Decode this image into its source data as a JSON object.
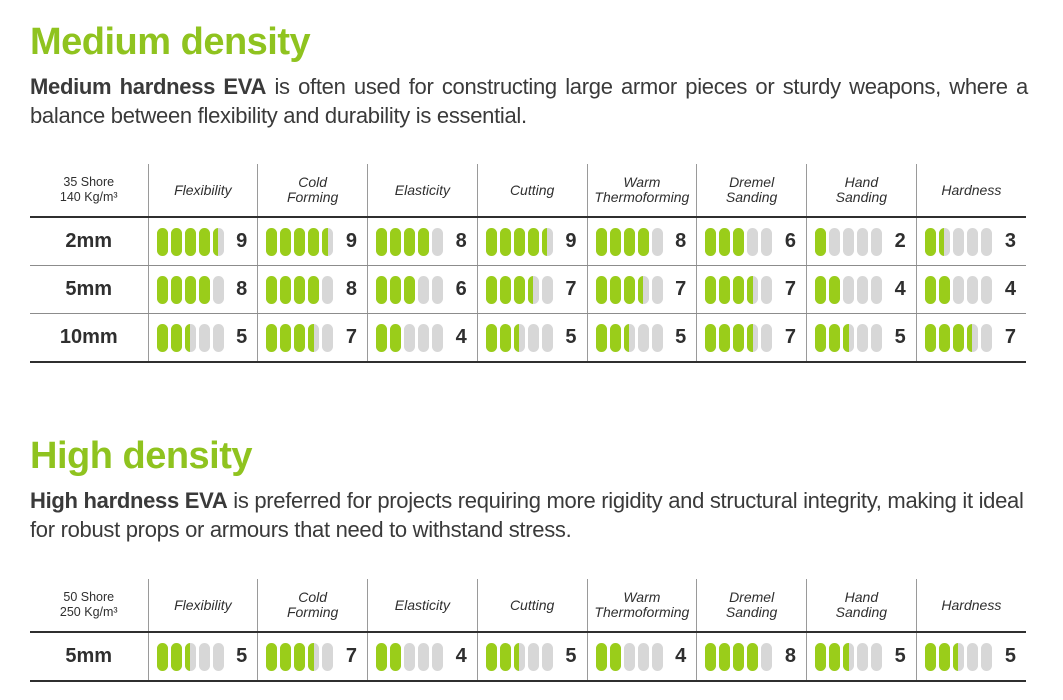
{
  "colors": {
    "accent": "#8fc31f",
    "bar_fill": "#9acd1a",
    "bar_empty": "#d7d7d7"
  },
  "medium": {
    "title": "Medium density",
    "desc_bold": "Medium hardness EVA",
    "desc_rest": " is often used for constructing large armor pieces or sturdy weapons, where a balance between flexibility and durability is essential.",
    "corner_line1": "35 Shore",
    "corner_line2": "140 Kg/m³",
    "headers": [
      "Flexibility",
      "Cold Forming",
      "Elasticity",
      "Cutting",
      "Warm Thermoforming",
      "Dremel Sanding",
      "Hand Sanding",
      "Hardness"
    ],
    "rows": [
      {
        "size": "2mm",
        "values": [
          "9",
          "9",
          "8",
          "9",
          "8",
          "6",
          "2",
          "3"
        ]
      },
      {
        "size": "5mm",
        "values": [
          "8",
          "8",
          "6",
          "7",
          "7",
          "7",
          "4",
          "4"
        ]
      },
      {
        "size": "10mm",
        "values": [
          "5",
          "7",
          "4",
          "5",
          "5",
          "7",
          "5",
          "7"
        ]
      }
    ]
  },
  "high": {
    "title": "High density",
    "desc_bold": "High hardness EVA",
    "desc_rest": " is preferred for projects requiring more rigidity and structural integrity, making it ideal for robust props or armours that need to withstand stress.",
    "corner_line1": "50 Shore",
    "corner_line2": "250 Kg/m³",
    "headers": [
      "Flexibility",
      "Cold Forming",
      "Elasticity",
      "Cutting",
      "Warm Thermoforming",
      "Dremel Sanding",
      "Hand Sanding",
      "Hardness"
    ],
    "rows": [
      {
        "size": "5mm",
        "values": [
          "5",
          "7",
          "4",
          "5",
          "4",
          "8",
          "5",
          "5"
        ]
      }
    ]
  }
}
